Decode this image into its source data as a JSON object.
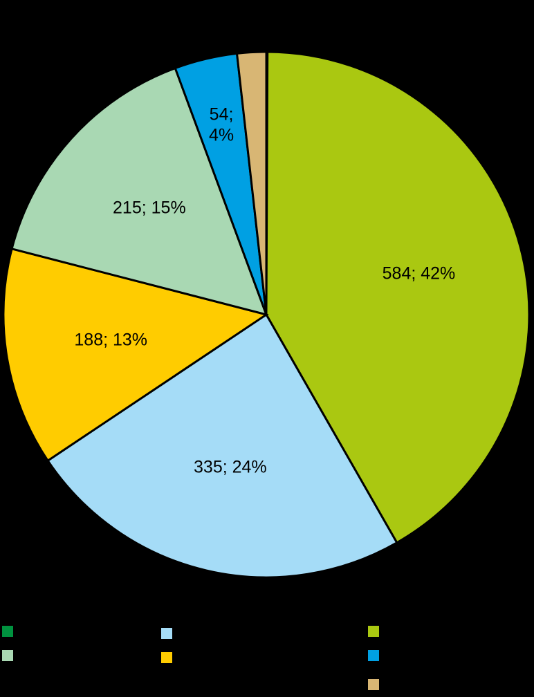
{
  "chart_data": {
    "type": "pie",
    "categories": [
      null,
      null,
      null,
      null,
      null,
      null,
      null
    ],
    "values": [
      1,
      584,
      335,
      188,
      215,
      54,
      25
    ],
    "value_labels": [
      null,
      "584; 42%",
      "335; 24%",
      "188; 13%",
      "215; 15%",
      "54; 4%",
      null
    ],
    "colors": [
      "#00923f",
      "#aac811",
      "#a5dcf7",
      "#ffcc00",
      "#a9d8b3",
      "#00a0e3",
      "#d8b674"
    ]
  }
}
